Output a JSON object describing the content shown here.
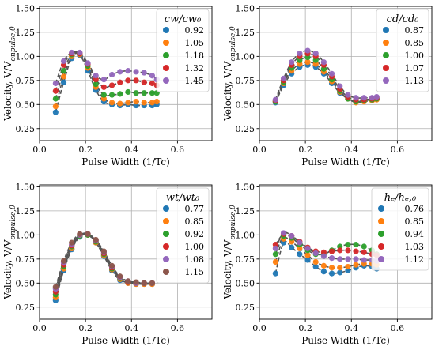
{
  "colors": {
    "blue": "#1f77b4",
    "orange": "#ff7f0e",
    "green": "#2ca02c",
    "red": "#d62728",
    "purple": "#9467bd",
    "brown": "#8c564b",
    "fit": "#555555",
    "grid": "#b0b0b0"
  },
  "chart_data": [
    {
      "type": "scatter",
      "xlabel": "Pulse Width (1/Tc)",
      "ylabel": "Velocity, V/V_{onpulse,0}",
      "xlim": [
        0,
        0.75
      ],
      "ylim": [
        0.125,
        1.52
      ],
      "xticks": [
        "0.0",
        "0.2",
        "0.4",
        "0.6"
      ],
      "yticks": [
        "0.25",
        "0.50",
        "0.75",
        "1.00",
        "1.25",
        "1.50"
      ],
      "grid": true,
      "legend_position": "top-right",
      "legend_title": "cw/cw₀",
      "x": [
        0.07,
        0.105,
        0.14,
        0.175,
        0.21,
        0.245,
        0.28,
        0.315,
        0.35,
        0.385,
        0.42,
        0.455,
        0.49,
        0.51
      ],
      "series": [
        {
          "name": "0.92",
          "values": [
            0.42,
            0.73,
            0.98,
            1.01,
            0.85,
            0.65,
            0.53,
            0.5,
            0.49,
            0.5,
            0.49,
            0.49,
            0.49,
            0.5
          ]
        },
        {
          "name": "1.05",
          "values": [
            0.48,
            0.79,
            1.0,
            1.02,
            0.88,
            0.68,
            0.56,
            0.52,
            0.51,
            0.52,
            0.53,
            0.52,
            0.52,
            0.53
          ]
        },
        {
          "name": "1.18",
          "values": [
            0.56,
            0.85,
            1.02,
            1.03,
            0.9,
            0.71,
            0.6,
            0.6,
            0.61,
            0.63,
            0.62,
            0.62,
            0.62,
            0.62
          ]
        },
        {
          "name": "1.32",
          "values": [
            0.64,
            0.91,
            1.03,
            1.03,
            0.92,
            0.76,
            0.68,
            0.7,
            0.73,
            0.75,
            0.75,
            0.73,
            0.72,
            0.7
          ]
        },
        {
          "name": "1.45",
          "values": [
            0.72,
            0.95,
            1.04,
            1.04,
            0.93,
            0.8,
            0.76,
            0.81,
            0.84,
            0.85,
            0.84,
            0.83,
            0.8,
            0.76
          ]
        }
      ]
    },
    {
      "type": "scatter",
      "xlabel": "Pulse Width (1/Tc)",
      "ylabel": "Velocity, V/V_{onpulse,0}",
      "xlim": [
        0,
        0.75
      ],
      "ylim": [
        0.125,
        1.52
      ],
      "xticks": [
        "0.0",
        "0.2",
        "0.4",
        "0.6"
      ],
      "yticks": [
        "0.25",
        "0.50",
        "0.75",
        "1.00",
        "1.25",
        "1.50"
      ],
      "grid": true,
      "legend_position": "top-right",
      "legend_title": "cd/cd₀",
      "x": [
        0.07,
        0.105,
        0.14,
        0.175,
        0.21,
        0.245,
        0.28,
        0.315,
        0.35,
        0.385,
        0.42,
        0.455,
        0.49,
        0.51
      ],
      "series": [
        {
          "name": "0.87",
          "values": [
            0.52,
            0.7,
            0.82,
            0.89,
            0.91,
            0.89,
            0.82,
            0.72,
            0.62,
            0.56,
            0.53,
            0.54,
            0.55,
            0.56
          ]
        },
        {
          "name": "0.85",
          "values": [
            0.53,
            0.72,
            0.85,
            0.92,
            0.94,
            0.92,
            0.84,
            0.74,
            0.63,
            0.56,
            0.52,
            0.53,
            0.54,
            0.55
          ]
        },
        {
          "name": "1.00",
          "values": [
            0.53,
            0.73,
            0.88,
            0.96,
            0.99,
            0.96,
            0.87,
            0.76,
            0.64,
            0.56,
            0.53,
            0.54,
            0.55,
            0.56
          ]
        },
        {
          "name": "1.07",
          "values": [
            0.54,
            0.75,
            0.91,
            1.0,
            1.03,
            1.0,
            0.91,
            0.79,
            0.66,
            0.58,
            0.55,
            0.55,
            0.56,
            0.57
          ]
        },
        {
          "name": "1.13",
          "values": [
            0.55,
            0.77,
            0.94,
            1.03,
            1.06,
            1.03,
            0.94,
            0.82,
            0.69,
            0.6,
            0.57,
            0.57,
            0.57,
            0.58
          ]
        }
      ]
    },
    {
      "type": "scatter",
      "xlabel": "Pulse Width (1/Tc)",
      "ylabel": "Velocity, V/V_{onpulse,0}",
      "xlim": [
        0,
        0.75
      ],
      "ylim": [
        0.125,
        1.52
      ],
      "xticks": [
        "0.0",
        "0.2",
        "0.4",
        "0.6"
      ],
      "yticks": [
        "0.25",
        "0.50",
        "0.75",
        "1.00",
        "1.25",
        "1.50"
      ],
      "grid": true,
      "legend_position": "top-right",
      "legend_title": "wt/wt₀",
      "x": [
        0.07,
        0.105,
        0.14,
        0.175,
        0.21,
        0.245,
        0.28,
        0.315,
        0.35,
        0.385,
        0.42,
        0.455,
        0.49
      ],
      "series": [
        {
          "name": "0.77",
          "values": [
            0.32,
            0.63,
            0.85,
            0.98,
            1.0,
            0.92,
            0.78,
            0.63,
            0.53,
            0.5,
            0.49,
            0.49,
            0.49
          ]
        },
        {
          "name": "0.85",
          "values": [
            0.35,
            0.65,
            0.86,
            0.99,
            1.0,
            0.92,
            0.79,
            0.64,
            0.54,
            0.5,
            0.49,
            0.49,
            0.49
          ]
        },
        {
          "name": "0.92",
          "values": [
            0.38,
            0.67,
            0.88,
            0.99,
            1.0,
            0.93,
            0.8,
            0.65,
            0.55,
            0.51,
            0.5,
            0.5,
            0.5
          ]
        },
        {
          "name": "1.00",
          "values": [
            0.41,
            0.69,
            0.89,
            1.0,
            1.01,
            0.94,
            0.81,
            0.66,
            0.56,
            0.51,
            0.5,
            0.5,
            0.5
          ]
        },
        {
          "name": "1.08",
          "values": [
            0.44,
            0.71,
            0.9,
            1.0,
            1.01,
            0.94,
            0.82,
            0.67,
            0.56,
            0.52,
            0.5,
            0.5,
            0.5
          ]
        },
        {
          "name": "1.15",
          "values": [
            0.46,
            0.73,
            0.92,
            1.01,
            1.01,
            0.95,
            0.83,
            0.68,
            0.57,
            0.52,
            0.51,
            0.5,
            0.5
          ]
        }
      ]
    },
    {
      "type": "scatter",
      "xlabel": "Pulse Width (1/Tc)",
      "ylabel": "Velocity, V/V_{onpulse,0}",
      "xlim": [
        0,
        0.75
      ],
      "ylim": [
        0.125,
        1.52
      ],
      "xticks": [
        "0.0",
        "0.2",
        "0.4",
        "0.6"
      ],
      "yticks": [
        "0.25",
        "0.50",
        "0.75",
        "1.00",
        "1.25",
        "1.50"
      ],
      "grid": true,
      "legend_position": "top-right",
      "legend_title": "hₑ/hₑ,₀",
      "x": [
        0.07,
        0.105,
        0.14,
        0.175,
        0.21,
        0.245,
        0.28,
        0.315,
        0.35,
        0.385,
        0.42,
        0.455,
        0.49,
        0.51
      ],
      "series": [
        {
          "name": "0.76",
          "values": [
            0.6,
            0.92,
            0.87,
            0.8,
            0.74,
            0.67,
            0.62,
            0.6,
            0.61,
            0.63,
            0.66,
            0.68,
            0.67,
            0.65
          ]
        },
        {
          "name": "0.85",
          "values": [
            0.72,
            0.96,
            0.93,
            0.86,
            0.79,
            0.72,
            0.68,
            0.66,
            0.66,
            0.67,
            0.69,
            0.7,
            0.7,
            0.69
          ]
        },
        {
          "name": "0.94",
          "values": [
            0.8,
            0.99,
            0.97,
            0.9,
            0.84,
            0.8,
            0.8,
            0.84,
            0.88,
            0.9,
            0.9,
            0.88,
            0.84,
            0.8
          ]
        },
        {
          "name": "1.03",
          "values": [
            0.9,
            1.01,
            0.99,
            0.93,
            0.87,
            0.83,
            0.82,
            0.83,
            0.84,
            0.84,
            0.83,
            0.82,
            0.8,
            0.79
          ]
        },
        {
          "name": "1.12",
          "values": [
            0.86,
            1.02,
            0.99,
            0.92,
            0.86,
            0.81,
            0.78,
            0.76,
            0.75,
            0.75,
            0.75,
            0.74,
            0.74,
            0.73
          ]
        }
      ]
    }
  ]
}
